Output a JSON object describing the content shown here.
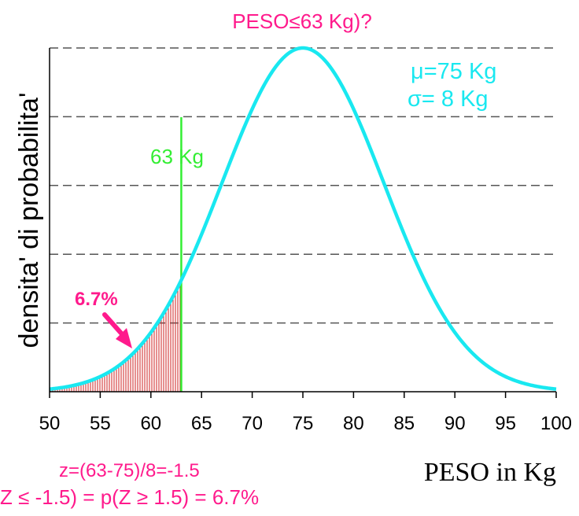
{
  "colors": {
    "title": "#ff1a8c",
    "curve": "#19e8f0",
    "cutoff_line": "#33ee33",
    "shade": "#cc2222",
    "grid": "#555555",
    "axis": "#000000",
    "annotation": "#ff1a8c"
  },
  "title": "PESO≤63 Kg)?",
  "ylabel": "densita' di probabilita'",
  "xlabel": "PESO in Kg",
  "params": {
    "mu_label": "μ=75 Kg",
    "sigma_label": "σ= 8 Kg"
  },
  "cutoff": {
    "label": "63 Kg"
  },
  "annotations": {
    "area_pct": "6.7%",
    "z_formula": "z=(63-75)/8=-1.5",
    "prob_formula": "Z ≤ -1.5) = p(Z ≥ 1.5) = 6.7%"
  },
  "chart_data": {
    "type": "area",
    "distribution": "normal",
    "mu": 75,
    "sigma": 8,
    "cutoff_x": 63,
    "shaded_area_percent": 6.7,
    "xlim": [
      50,
      100
    ],
    "xticks": [
      50,
      55,
      60,
      65,
      70,
      75,
      80,
      85,
      90,
      95,
      100
    ],
    "y_gridlines": 5,
    "grid": true
  }
}
